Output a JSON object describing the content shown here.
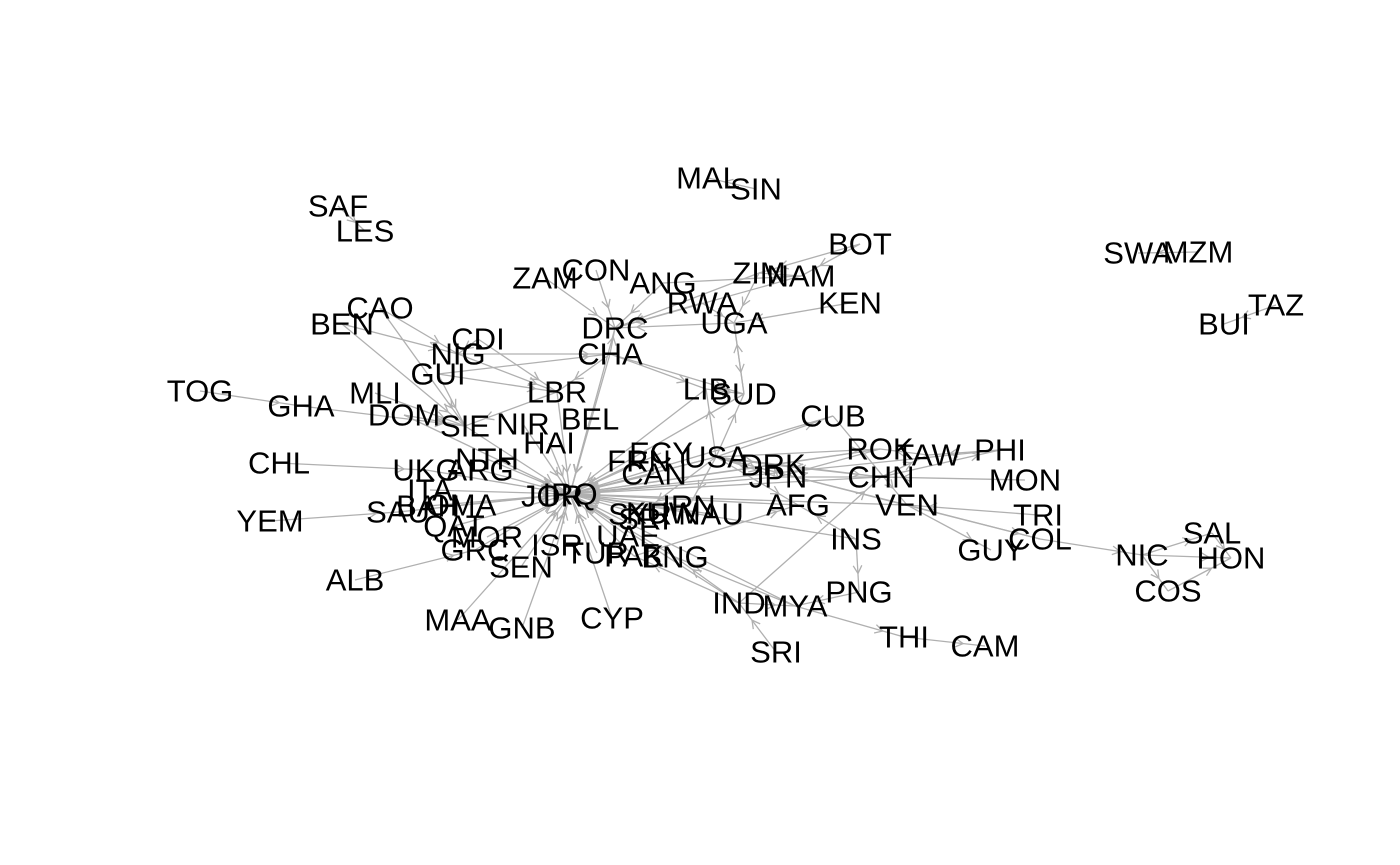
{
  "colors": {
    "background": "#ffffff",
    "edge": "#b0b0b0",
    "label": "#000000"
  },
  "nodes": [
    "MAL",
    "SIN",
    "SAF",
    "LES",
    "SWA",
    "MZM",
    "BUI",
    "TAZ",
    "BOT",
    "ZAM",
    "CON",
    "ANG",
    "ZIM",
    "NAM",
    "RWA",
    "KEN",
    "DRC",
    "UGA",
    "CAO",
    "BEN",
    "CDI",
    "NIG",
    "CHA",
    "GUI",
    "TOG",
    "GHA",
    "MLI",
    "LBR",
    "LIB",
    "SUD",
    "DOM",
    "SIE",
    "NIR",
    "BEL",
    "CUB",
    "HAI",
    "ROK",
    "TAW",
    "PHI",
    "CHL",
    "UKG",
    "NTH",
    "ARG",
    "FRN",
    "ECY",
    "USA",
    "DRK",
    "CAN",
    "JPN",
    "CHN",
    "MON",
    "ITA",
    "JOR",
    "IRQ",
    "YEM",
    "SAU",
    "BAH",
    "OMA",
    "IRN",
    "AFG",
    "VEN",
    "TRI",
    "SYR",
    "KUW",
    "SRI",
    "NAU",
    "QAT",
    "UAE",
    "INS",
    "COL",
    "SAL",
    "MOR",
    "ISR",
    "GUY",
    "NIC",
    "HON",
    "GRC",
    "TUR",
    "PAK",
    "BNG",
    "SEN",
    "COS",
    "ALB",
    "PNG",
    "IND",
    "MYA",
    "MAA",
    "GNB",
    "CYP",
    "THI",
    "CAM",
    "SRI2"
  ],
  "node_text": {
    "MAL": "MAL",
    "SIN": "SIN",
    "SAF": "SAF",
    "LES": "LES",
    "SWA": "SWA",
    "MZM": "MZM",
    "BUI": "BUI",
    "TAZ": "TAZ",
    "BOT": "BOT",
    "ZAM": "ZAM",
    "CON": "CON",
    "ANG": "ANG",
    "ZIM": "ZIM",
    "NAM": "NAM",
    "RWA": "RWA",
    "KEN": "KEN",
    "DRC": "DRC",
    "UGA": "UGA",
    "CAO": "CAO",
    "BEN": "BEN",
    "CDI": "CDI",
    "NIG": "NIG",
    "CHA": "CHA",
    "GUI": "GUI",
    "TOG": "TOG",
    "GHA": "GHA",
    "MLI": "MLI",
    "LBR": "LBR",
    "LIB": "LIB",
    "SUD": "SUD",
    "DOM": "DOM",
    "SIE": "SIE",
    "NIR": "NIR",
    "BEL": "BEL",
    "CUB": "CUB",
    "HAI": "HAI",
    "ROK": "ROK",
    "TAW": "TAW",
    "PHI": "PHI",
    "CHL": "CHL",
    "UKG": "UKG",
    "NTH": "NTH",
    "ARG": "ARG",
    "FRN": "FRN",
    "ECY": "ECY",
    "USA": "USA",
    "DRK": "DRK",
    "CAN": "CAN",
    "JPN": "JPN",
    "CHN": "CHN",
    "MON": "MON",
    "ITA": "ITA",
    "JOR": "JOR",
    "IRQ": "IRQ",
    "YEM": "YEM",
    "SAU": "SAU",
    "BAH": "BAH",
    "OMA": "OMA",
    "IRN": "IRN",
    "AFG": "AFG",
    "VEN": "VEN",
    "TRI": "TRI",
    "SYR": "SYR",
    "KUW": "KUW",
    "SRI": "SRI",
    "NAU": "NAU",
    "QAT": "QAT",
    "UAE": "UAE",
    "INS": "INS",
    "COL": "COL",
    "SAL": "SAL",
    "MOR": "MOR",
    "ISR": "ISR",
    "GUY": "GUY",
    "NIC": "NIC",
    "HON": "HON",
    "GRC": "GRC",
    "TUR": "TUR",
    "PAK": "PAK",
    "BNG": "BNG",
    "SEN": "SEN",
    "COS": "COS",
    "ALB": "ALB",
    "PNG": "PNG",
    "IND": "IND",
    "MYA": "MYA",
    "MAA": "MAA",
    "GNB": "GNB",
    "CYP": "CYP",
    "THI": "THI",
    "CAM": "CAM",
    "SRI2": "SRI"
  },
  "edges": [
    [
      "SIN",
      "MAL"
    ],
    [
      "SAF",
      "LES"
    ],
    [
      "MZM",
      "SWA"
    ],
    [
      "TAZ",
      "BUI"
    ],
    [
      "ZAM",
      "DRC"
    ],
    [
      "CON",
      "DRC"
    ],
    [
      "ANG",
      "DRC"
    ],
    [
      "ZIM",
      "DRC"
    ],
    [
      "NAM",
      "DRC"
    ],
    [
      "RWA",
      "DRC"
    ],
    [
      "UGA",
      "DRC"
    ],
    [
      "BOT",
      "ZIM"
    ],
    [
      "NAM",
      "ZIM"
    ],
    [
      "BOT",
      "NAM"
    ],
    [
      "KEN",
      "UGA"
    ],
    [
      "RWA",
      "UGA"
    ],
    [
      "ANG",
      "NAM"
    ],
    [
      "ZIM",
      "UGA"
    ],
    [
      "CHA",
      "DRC"
    ],
    [
      "CHA",
      "SUD"
    ],
    [
      "CHA",
      "LBR"
    ],
    [
      "SUD",
      "UGA"
    ],
    [
      "LIB",
      "SUD"
    ],
    [
      "CHA",
      "LIB"
    ],
    [
      "UGA",
      "SUD"
    ],
    [
      "BEN",
      "NIG"
    ],
    [
      "CAO",
      "NIG"
    ],
    [
      "CDI",
      "LBR"
    ],
    [
      "NIG",
      "LBR"
    ],
    [
      "GUI",
      "LBR"
    ],
    [
      "GUI",
      "SIE"
    ],
    [
      "LBR",
      "SIE"
    ],
    [
      "CDI",
      "NIG"
    ],
    [
      "NIG",
      "CHA"
    ],
    [
      "GUI",
      "CHA"
    ],
    [
      "TOG",
      "GHA"
    ],
    [
      "GHA",
      "SIE"
    ],
    [
      "MLI",
      "SIE"
    ],
    [
      "DOM",
      "SIE"
    ],
    [
      "CAO",
      "SIE"
    ],
    [
      "BEN",
      "SIE"
    ],
    [
      "LBR",
      "IRQ"
    ],
    [
      "BEL",
      "IRQ"
    ],
    [
      "NIR",
      "IRQ"
    ],
    [
      "HAI",
      "IRQ"
    ],
    [
      "SIE",
      "IRQ"
    ],
    [
      "DOM",
      "IRQ"
    ],
    [
      "CHA",
      "IRQ"
    ],
    [
      "DRC",
      "IRQ"
    ],
    [
      "UKG",
      "IRQ"
    ],
    [
      "NTH",
      "IRQ"
    ],
    [
      "ARG",
      "IRQ"
    ],
    [
      "ITA",
      "IRQ"
    ],
    [
      "CHL",
      "UKG"
    ],
    [
      "YEM",
      "SAU"
    ],
    [
      "SAU",
      "IRQ"
    ],
    [
      "BAH",
      "IRQ"
    ],
    [
      "OMA",
      "IRQ"
    ],
    [
      "QAT",
      "IRQ"
    ],
    [
      "MOR",
      "IRQ"
    ],
    [
      "GRC",
      "IRQ"
    ],
    [
      "ALB",
      "GRC"
    ],
    [
      "SEN",
      "IRQ"
    ],
    [
      "ISR",
      "IRQ"
    ],
    [
      "TUR",
      "IRQ"
    ],
    [
      "CYP",
      "IRQ"
    ],
    [
      "MAA",
      "IRQ"
    ],
    [
      "GNB",
      "IRQ"
    ],
    [
      "PAK",
      "IRQ"
    ],
    [
      "BNG",
      "IRQ"
    ],
    [
      "UAE",
      "IRQ"
    ],
    [
      "SYR",
      "IRQ"
    ],
    [
      "KUW",
      "IRQ"
    ],
    [
      "IRN",
      "IRQ"
    ],
    [
      "NAU",
      "IRQ"
    ],
    [
      "JOR",
      "IRQ"
    ],
    [
      "FRN",
      "IRQ"
    ],
    [
      "ECY",
      "IRQ"
    ],
    [
      "USA",
      "IRQ"
    ],
    [
      "CAN",
      "IRQ"
    ],
    [
      "JPN",
      "IRQ"
    ],
    [
      "DRK",
      "IRQ"
    ],
    [
      "AFG",
      "IRQ"
    ],
    [
      "CHN",
      "IRQ"
    ],
    [
      "USA",
      "IRQ"
    ],
    [
      "USA",
      "AFG"
    ],
    [
      "USA",
      "DRK"
    ],
    [
      "USA",
      "CHN"
    ],
    [
      "USA",
      "JPN"
    ],
    [
      "USA",
      "ROK"
    ],
    [
      "USA",
      "IRN"
    ],
    [
      "USA",
      "CUB"
    ],
    [
      "USA",
      "SUD"
    ],
    [
      "USA",
      "LIB"
    ],
    [
      "USA",
      "SYR"
    ],
    [
      "ROK",
      "DRK"
    ],
    [
      "JPN",
      "DRK"
    ],
    [
      "CHN",
      "DRK"
    ],
    [
      "CHN",
      "TAW"
    ],
    [
      "CHN",
      "JPN"
    ],
    [
      "CHN",
      "PHI"
    ],
    [
      "PHI",
      "TAW"
    ],
    [
      "ROK",
      "JPN"
    ],
    [
      "MON",
      "CHN"
    ],
    [
      "TAW",
      "ROK"
    ],
    [
      "CUB",
      "VEN"
    ],
    [
      "VEN",
      "COL"
    ],
    [
      "VEN",
      "GUY"
    ],
    [
      "TRI",
      "VEN"
    ],
    [
      "COL",
      "NIC"
    ],
    [
      "NIC",
      "SAL"
    ],
    [
      "NIC",
      "HON"
    ],
    [
      "NIC",
      "COS"
    ],
    [
      "SAL",
      "HON"
    ],
    [
      "COS",
      "HON"
    ],
    [
      "VEN",
      "USA"
    ],
    [
      "COL",
      "USA"
    ],
    [
      "INS",
      "PNG"
    ],
    [
      "INS",
      "AFG"
    ],
    [
      "PNG",
      "MYA"
    ],
    [
      "IND",
      "PAK"
    ],
    [
      "IND",
      "BNG"
    ],
    [
      "IND",
      "MYA"
    ],
    [
      "MYA",
      "THI"
    ],
    [
      "THI",
      "CAM"
    ],
    [
      "SRI2",
      "IND"
    ],
    [
      "IND",
      "CHN"
    ],
    [
      "MYA",
      "BNG"
    ],
    [
      "PAK",
      "AFG"
    ],
    [
      "IND",
      "IRQ"
    ],
    [
      "MYA",
      "IRQ"
    ],
    [
      "SUD",
      "IRQ"
    ],
    [
      "LIB",
      "IRQ"
    ],
    [
      "CUB",
      "IRQ"
    ],
    [
      "ROK",
      "IRQ"
    ],
    [
      "INS",
      "IRQ"
    ],
    [
      "VEN",
      "IRQ"
    ],
    [
      "PHI",
      "IRQ"
    ]
  ]
}
